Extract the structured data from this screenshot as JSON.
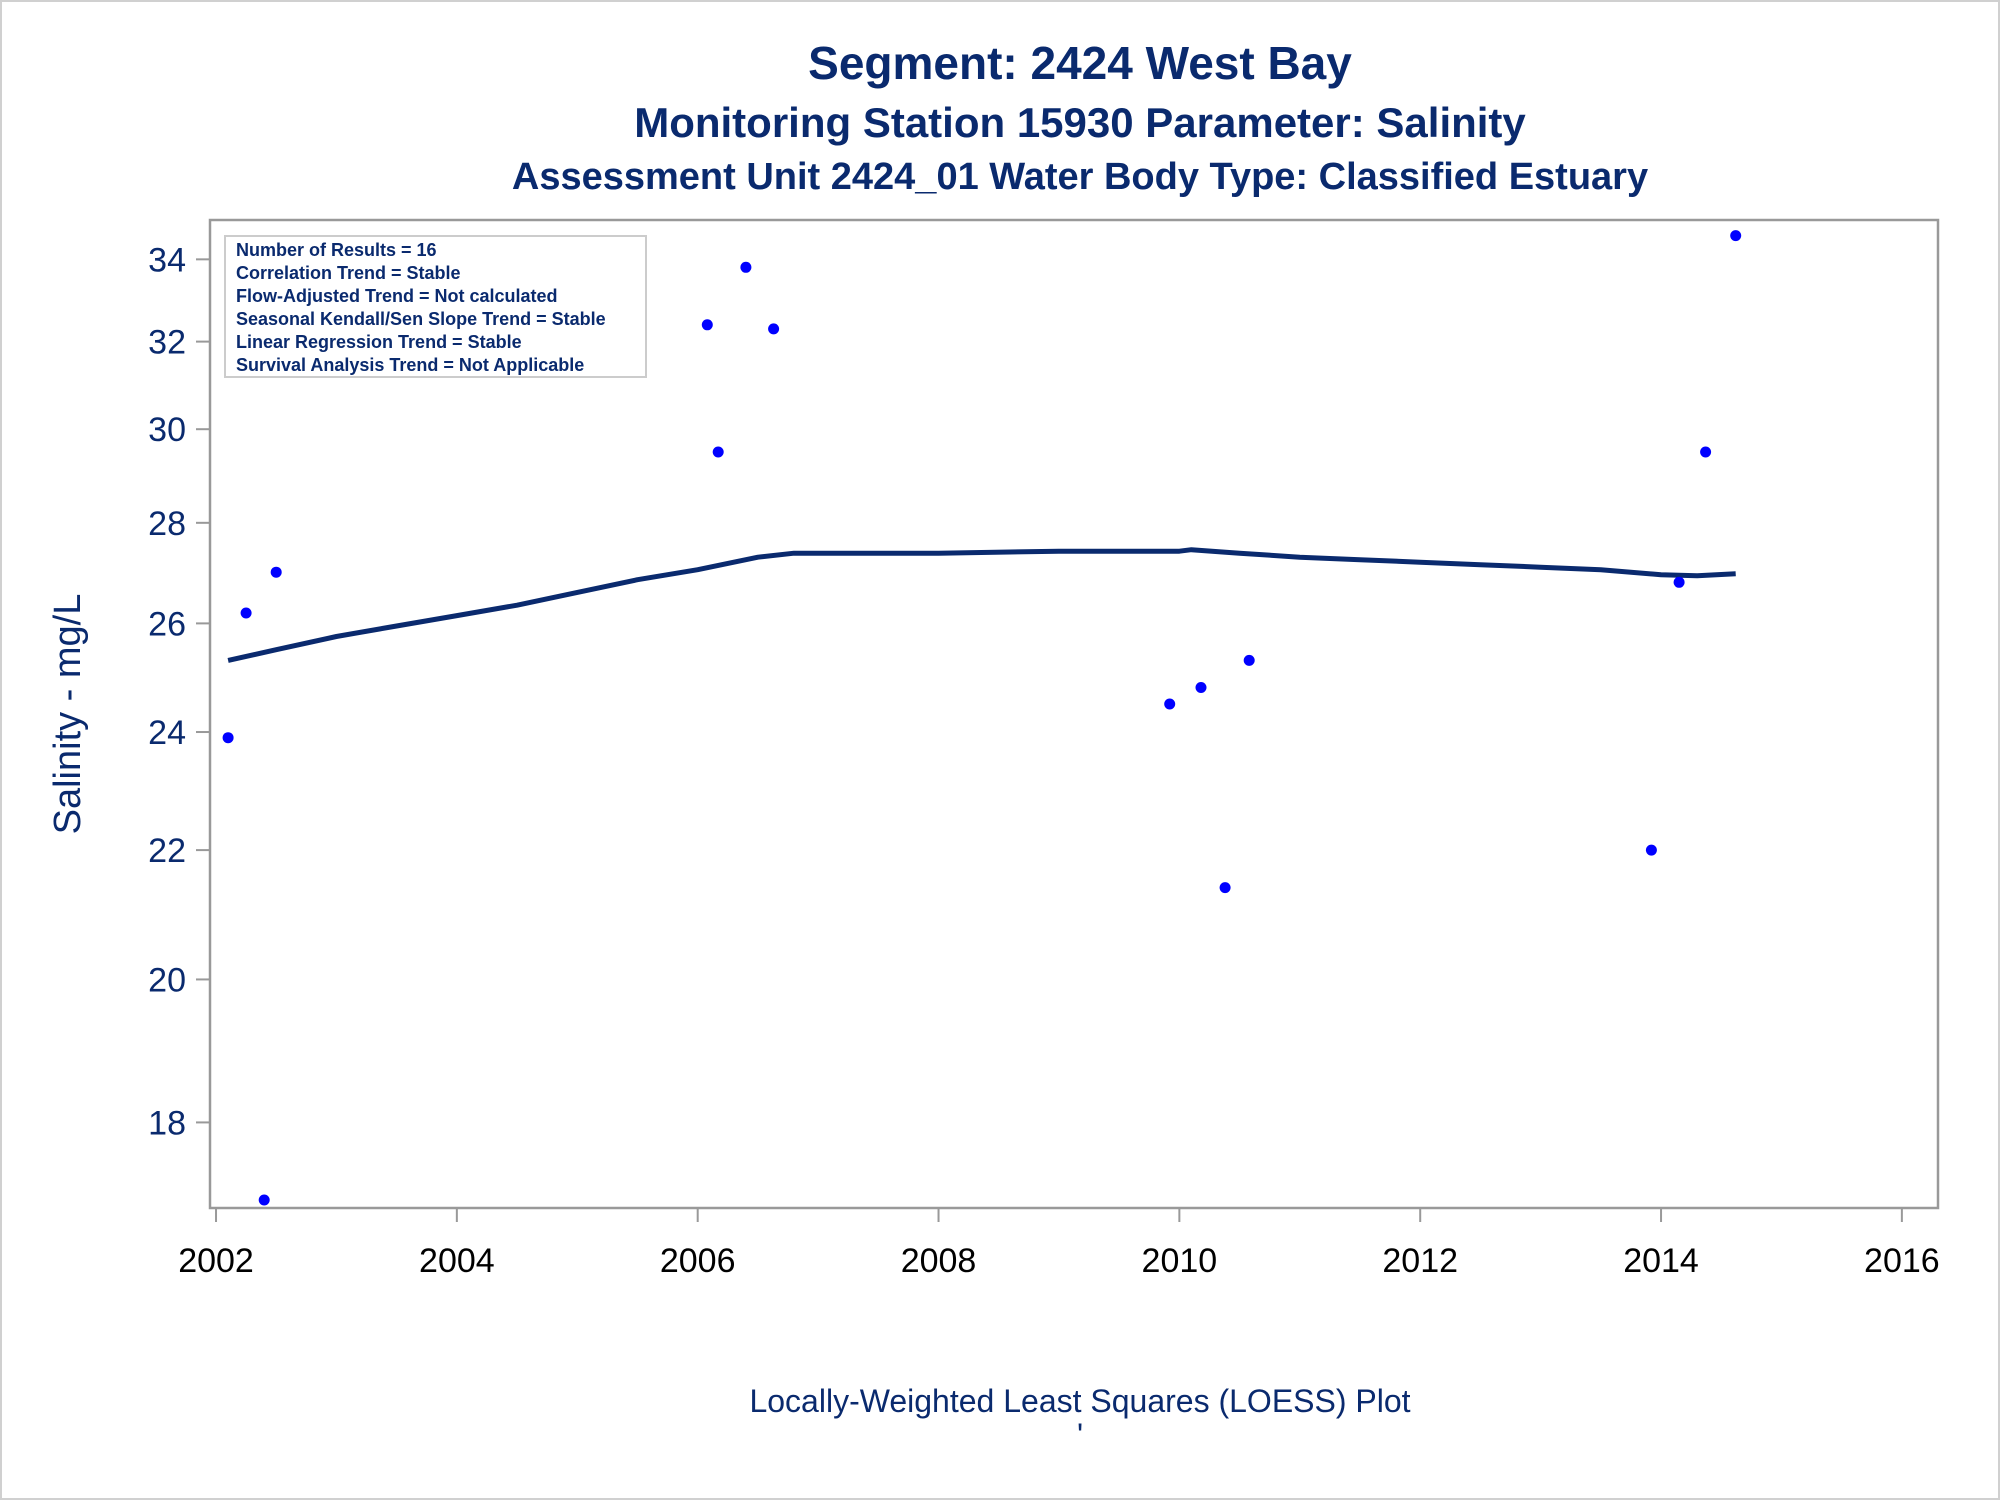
{
  "chart_data": {
    "type": "scatter",
    "title": "Segment: 2424  West Bay",
    "subtitle": "Monitoring Station 15930 Parameter: Salinity",
    "subtitle2": "Assessment Unit 2424_01   Water Body Type: Classified Estuary",
    "xlabel": "Locally-Weighted Least Squares (LOESS) Plot",
    "ylabel": "Salinity - mg/L",
    "y_scale": "log",
    "xlim": [
      2001.95,
      2016.3
    ],
    "ylim": [
      16.9,
      35.0
    ],
    "x_ticks": [
      2002,
      2004,
      2006,
      2008,
      2010,
      2012,
      2014,
      2016
    ],
    "y_ticks": [
      18,
      20,
      22,
      24,
      26,
      28,
      30,
      32,
      34
    ],
    "grid": false,
    "series": [
      {
        "kind": "points",
        "color": "#0000ff",
        "points": [
          {
            "x": 2002.1,
            "y": 23.9
          },
          {
            "x": 2002.25,
            "y": 26.2
          },
          {
            "x": 2002.4,
            "y": 17.0
          },
          {
            "x": 2002.5,
            "y": 27.0
          },
          {
            "x": 2006.08,
            "y": 32.4
          },
          {
            "x": 2006.17,
            "y": 29.5
          },
          {
            "x": 2006.4,
            "y": 33.8
          },
          {
            "x": 2006.63,
            "y": 32.3
          },
          {
            "x": 2009.92,
            "y": 24.5
          },
          {
            "x": 2010.18,
            "y": 24.8
          },
          {
            "x": 2010.38,
            "y": 21.4
          },
          {
            "x": 2010.58,
            "y": 25.3
          },
          {
            "x": 2013.92,
            "y": 22.0
          },
          {
            "x": 2014.15,
            "y": 26.8
          },
          {
            "x": 2014.37,
            "y": 29.5
          },
          {
            "x": 2014.62,
            "y": 34.6
          }
        ]
      },
      {
        "kind": "loess",
        "color": "#0a2a6e",
        "points": [
          {
            "x": 2002.1,
            "y": 25.3
          },
          {
            "x": 2002.5,
            "y": 25.5
          },
          {
            "x": 2003.0,
            "y": 25.75
          },
          {
            "x": 2003.5,
            "y": 25.95
          },
          {
            "x": 2004.0,
            "y": 26.15
          },
          {
            "x": 2004.5,
            "y": 26.35
          },
          {
            "x": 2005.0,
            "y": 26.6
          },
          {
            "x": 2005.5,
            "y": 26.85
          },
          {
            "x": 2006.0,
            "y": 27.05
          },
          {
            "x": 2006.5,
            "y": 27.3
          },
          {
            "x": 2006.8,
            "y": 27.38
          },
          {
            "x": 2007.5,
            "y": 27.38
          },
          {
            "x": 2008.0,
            "y": 27.38
          },
          {
            "x": 2009.0,
            "y": 27.42
          },
          {
            "x": 2010.0,
            "y": 27.42
          },
          {
            "x": 2010.1,
            "y": 27.45
          },
          {
            "x": 2010.5,
            "y": 27.38
          },
          {
            "x": 2011.0,
            "y": 27.3
          },
          {
            "x": 2011.5,
            "y": 27.25
          },
          {
            "x": 2012.0,
            "y": 27.2
          },
          {
            "x": 2012.5,
            "y": 27.15
          },
          {
            "x": 2013.0,
            "y": 27.1
          },
          {
            "x": 2013.5,
            "y": 27.05
          },
          {
            "x": 2014.0,
            "y": 26.95
          },
          {
            "x": 2014.3,
            "y": 26.93
          },
          {
            "x": 2014.62,
            "y": 26.97
          }
        ]
      }
    ]
  },
  "stats_box": [
    "Number of Results = 16",
    "Correlation Trend = Stable",
    "Flow-Adjusted Trend = Not calculated",
    "Seasonal Kendall/Sen Slope Trend = Stable",
    "Linear Regression Trend = Stable",
    "Survival Analysis Trend = Not Applicable"
  ],
  "footnote_mark": "'",
  "colors": {
    "text": "#0a2a6e",
    "points": "#0000ff",
    "line": "#0a2a6e",
    "frame": "#999999"
  }
}
